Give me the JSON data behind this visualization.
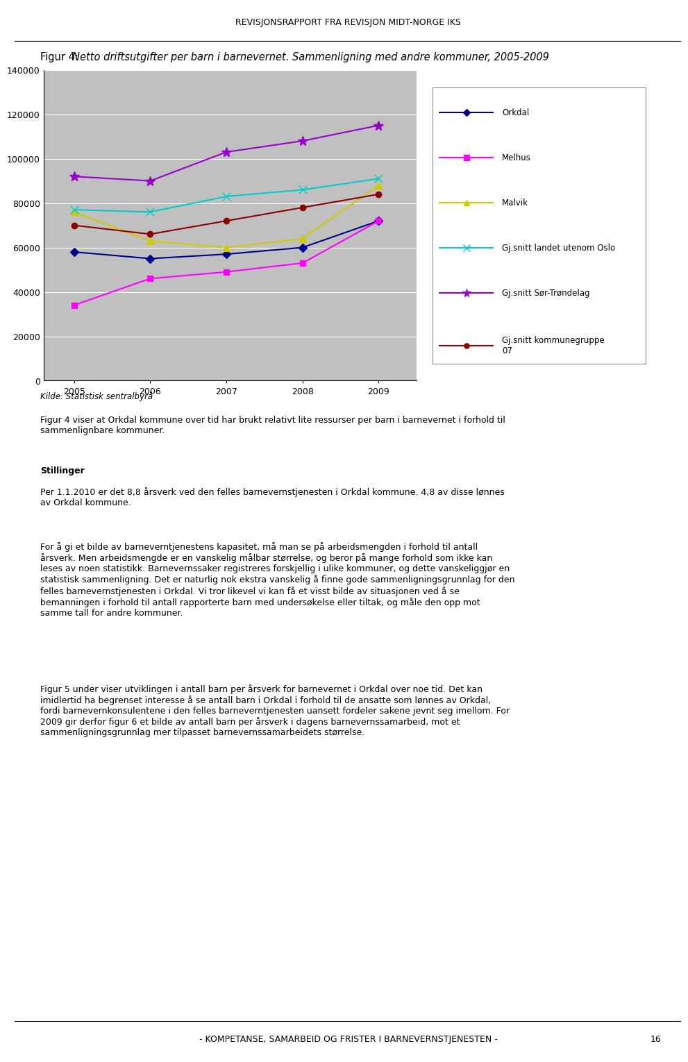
{
  "title_prefix": "Figur 4: ",
  "title_italic": "Netto driftsutgifter per barn i barnevernet. Sammenligning med andre kommuner, 2005-2009",
  "header": "REVISJONSRAPPORT FRA REVISJON MIDT-NORGE IKS",
  "footer": "- KOMPETANSE, SAMARBEID OG FRISTER I BARNEVERNSTJENESTEN -",
  "footer_page": "16",
  "source": "Kilde: Statistisk sentralbyrå",
  "years": [
    2005,
    2006,
    2007,
    2008,
    2009
  ],
  "series": [
    {
      "label": "Orkdal",
      "color": "#00008B",
      "marker": "D",
      "markersize": 6,
      "values": [
        58000,
        55000,
        57000,
        60000,
        72000
      ]
    },
    {
      "label": "Melhus",
      "color": "#FF00FF",
      "marker": "s",
      "markersize": 6,
      "values": [
        34000,
        46000,
        49000,
        53000,
        72000
      ]
    },
    {
      "label": "Malvik",
      "color": "#CCCC00",
      "marker": "^",
      "markersize": 7,
      "values": [
        76000,
        63000,
        60000,
        64000,
        88000
      ]
    },
    {
      "label": "Gj.snitt landet utenom Oslo",
      "color": "#00CCCC",
      "marker": "x",
      "markersize": 8,
      "linewidth": 1.5,
      "values": [
        77000,
        76000,
        83000,
        86000,
        91000
      ]
    },
    {
      "label": "Gj.snitt Sør-Trøndelag",
      "color": "#9900CC",
      "marker": "*",
      "markersize": 10,
      "values": [
        92000,
        90000,
        103000,
        108000,
        115000
      ]
    },
    {
      "label": "Gj.snitt kommunegruppe\n07",
      "color": "#8B0000",
      "marker": "o",
      "markersize": 6,
      "values": [
        70000,
        66000,
        72000,
        78000,
        84000
      ]
    }
  ],
  "ylim": [
    0,
    140000
  ],
  "yticks": [
    0,
    20000,
    40000,
    60000,
    80000,
    100000,
    120000,
    140000
  ],
  "chart_bg": "#C0C0C0",
  "page_bg": "#FFFFFF",
  "legend_fontsize": 9,
  "axis_fontsize": 9,
  "body_fontsize": 9,
  "title_fontsize": 10.5
}
